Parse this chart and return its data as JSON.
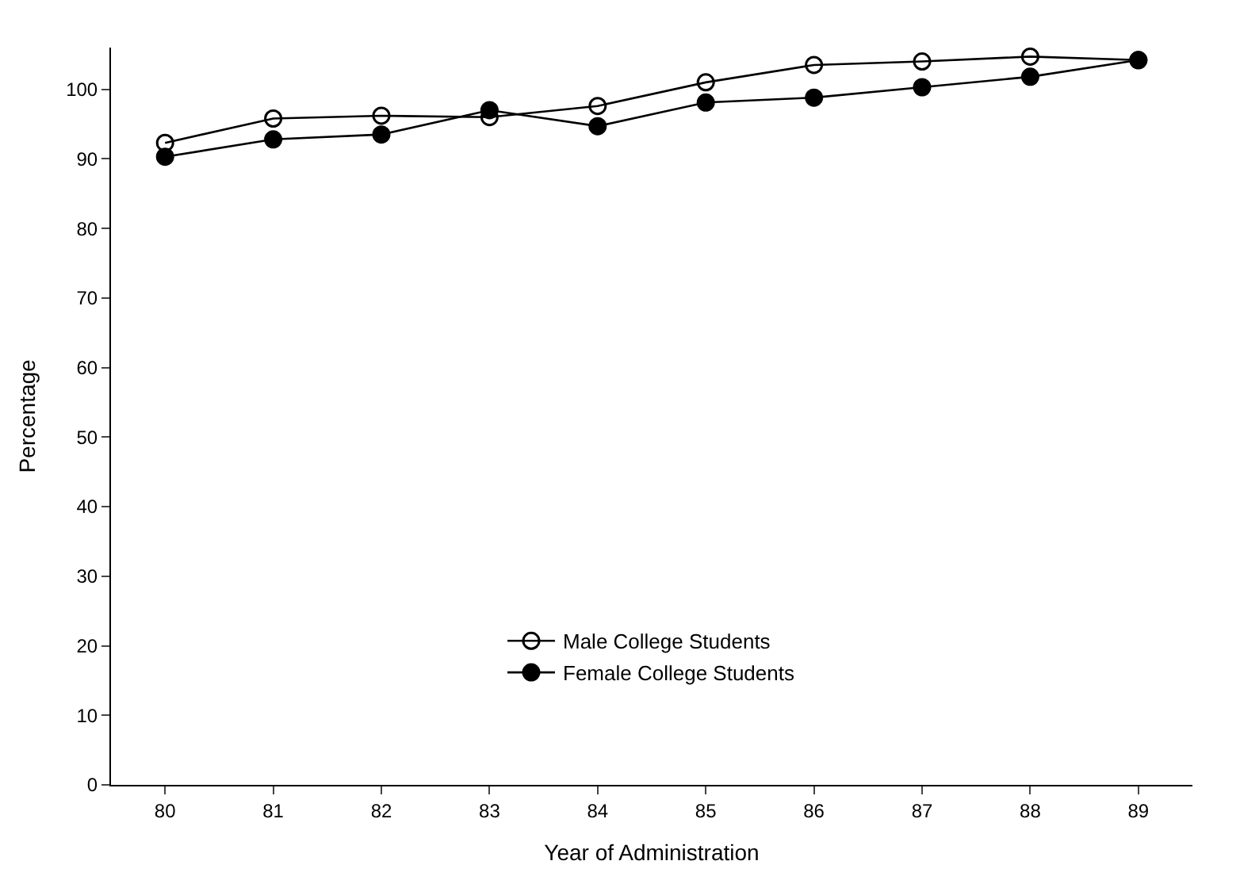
{
  "chart_data": {
    "type": "line",
    "xlabel": "Year of Administration",
    "ylabel": "Percentage",
    "x": [
      80,
      81,
      82,
      83,
      84,
      85,
      86,
      87,
      88,
      89
    ],
    "xlim": [
      79.5,
      89.5
    ],
    "xticks": [
      80,
      81,
      82,
      83,
      84,
      85,
      86,
      87,
      88,
      89
    ],
    "ylim": [
      0,
      106
    ],
    "yticks": [
      0,
      10,
      20,
      30,
      40,
      50,
      60,
      70,
      80,
      90,
      100
    ],
    "series": [
      {
        "name": "Male College Students",
        "color": "#000000",
        "values": [
          92.3,
          95.8,
          96.2,
          96,
          97.6,
          101,
          103.5,
          104,
          104.7,
          104.2
        ]
      },
      {
        "name": "Female College Students",
        "color": "#000000",
        "values": [
          90.3,
          92.8,
          93.5,
          97,
          94.7,
          98.1,
          98.8,
          100.3,
          101.8,
          104.2
        ]
      }
    ],
    "marker": "circle",
    "line_style": "solid",
    "legend": "bottom"
  }
}
